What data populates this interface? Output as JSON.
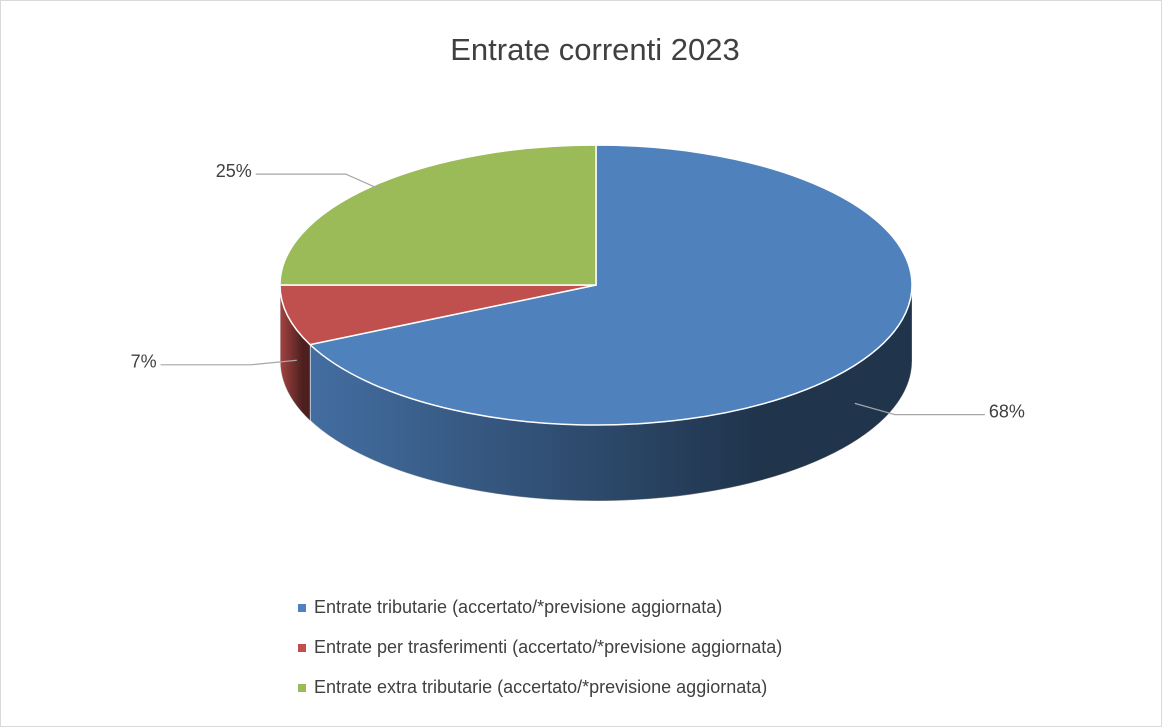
{
  "chart_data": {
    "type": "pie",
    "title": "Entrate correnti 2023",
    "categories": [
      "Entrate tributarie (accertato/*previsione aggiornata)",
      "Entrate per trasferimenti (accertato/*previsione aggiornata)",
      "Entrate extra tributarie (accertato/*previsione aggiornata)"
    ],
    "values": [
      68,
      7,
      25
    ],
    "value_labels": [
      "68%",
      "7%",
      "25%"
    ],
    "colors": [
      "#4f81bd",
      "#c0504d",
      "#9bbb59"
    ],
    "legend": "bottom"
  }
}
